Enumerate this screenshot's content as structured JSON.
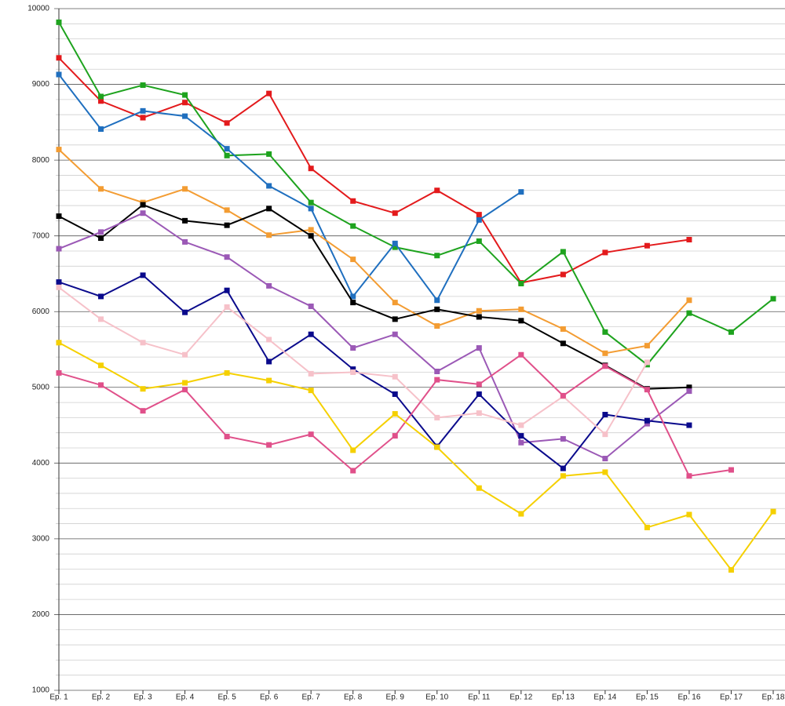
{
  "chart_data": {
    "type": "line",
    "categories": [
      "Ep. 1",
      "Ep. 2",
      "Ep. 3",
      "Ep. 4",
      "Ep. 5",
      "Ep. 6",
      "Ep. 7",
      "Ep. 8",
      "Ep. 9",
      "Ep. 10",
      "Ep. 11",
      "Ep. 12",
      "Ep. 13",
      "Ep. 14",
      "Ep. 15",
      "Ep. 16",
      "Ep. 17",
      "Ep. 18"
    ],
    "ylim": [
      1000,
      10000
    ],
    "yticks": [
      1000,
      2000,
      3000,
      4000,
      5000,
      6000,
      7000,
      8000,
      9000,
      10000
    ],
    "yminorticks": [
      1200,
      1400,
      1600,
      1800,
      2200,
      2400,
      2600,
      2800,
      3200,
      3400,
      3600,
      3800,
      4200,
      4400,
      4600,
      4800,
      5200,
      5400,
      5600,
      5800,
      6200,
      6400,
      6600,
      6800,
      7200,
      7400,
      7600,
      7800,
      8200,
      8400,
      8600,
      8800,
      9200,
      9400,
      9600,
      9800
    ],
    "grid": true,
    "series": [
      {
        "color": "#e31a1c",
        "values": [
          9350,
          8780,
          8560,
          8760,
          8490,
          8880,
          7890,
          7460,
          7300,
          7600,
          7280,
          6380,
          6490,
          6780,
          6870,
          6950,
          null,
          null
        ]
      },
      {
        "color": "#1ea31e",
        "values": [
          9820,
          8840,
          8990,
          8860,
          8060,
          8080,
          7440,
          7130,
          6850,
          6740,
          6930,
          6370,
          6790,
          5730,
          5300,
          5980,
          5730,
          6170
        ]
      },
      {
        "color": "#1f6fbf",
        "values": [
          9130,
          8410,
          8650,
          8580,
          8150,
          7660,
          7360,
          6200,
          6900,
          6150,
          7210,
          7580,
          null,
          null,
          null,
          null,
          null,
          null
        ]
      },
      {
        "color": "#f39c32",
        "values": [
          8140,
          7620,
          7440,
          7620,
          7340,
          7010,
          7080,
          6690,
          6120,
          5810,
          6010,
          6030,
          5770,
          5450,
          5550,
          6150,
          null,
          null
        ]
      },
      {
        "color": "#000000",
        "values": [
          7260,
          6970,
          7410,
          7200,
          7140,
          7360,
          7000,
          6120,
          5900,
          6030,
          5930,
          5880,
          5580,
          5290,
          4980,
          5000,
          null,
          null
        ]
      },
      {
        "color": "#9b59b6",
        "values": [
          6830,
          7050,
          7300,
          6920,
          6720,
          6340,
          6070,
          5520,
          5700,
          5210,
          5520,
          4270,
          4320,
          4060,
          4520,
          4950,
          null,
          null
        ]
      },
      {
        "color": "#0a0a8c",
        "values": [
          6390,
          6200,
          6480,
          5990,
          6280,
          5340,
          5700,
          5240,
          4910,
          4220,
          4910,
          4360,
          3930,
          4640,
          4560,
          4500,
          null,
          null
        ]
      },
      {
        "color": "#f6c1c9",
        "values": [
          6320,
          5900,
          5590,
          5430,
          6060,
          5630,
          5180,
          5200,
          5140,
          4600,
          4660,
          4500,
          4880,
          4380,
          5330,
          null,
          null,
          null
        ]
      },
      {
        "color": "#e0508a",
        "values": [
          5190,
          5030,
          4690,
          4970,
          4350,
          4240,
          4380,
          3900,
          4360,
          5100,
          5040,
          5430,
          4890,
          5280,
          4970,
          3830,
          3910,
          null
        ]
      },
      {
        "color": "#f5d000",
        "values": [
          5590,
          5290,
          4980,
          5060,
          5190,
          5090,
          4960,
          4170,
          4650,
          4210,
          3670,
          3330,
          3830,
          3880,
          3150,
          3320,
          2590,
          3360
        ]
      }
    ]
  }
}
